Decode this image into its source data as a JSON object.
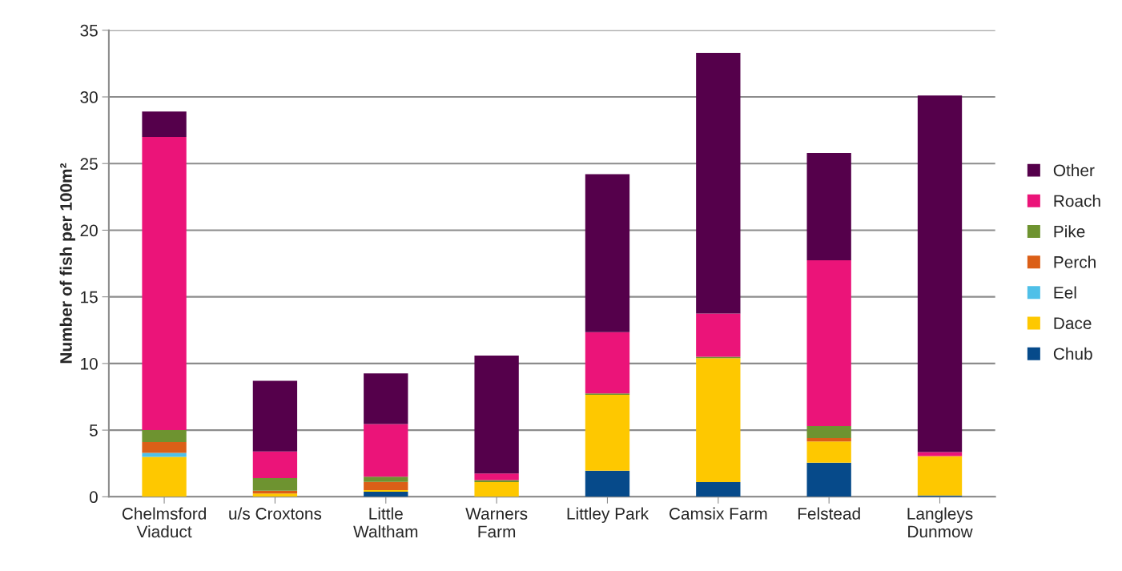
{
  "chart_data": {
    "type": "bar",
    "stacked": true,
    "ylabel": "Number of fish per 100m²",
    "categories": [
      "Chelmsford\nViaduct",
      "u/s Croxtons",
      "Little\nWaltham",
      "Warners\nFarm",
      "Littley Park",
      "Camsix Farm",
      "Felstead",
      "Langleys\nDunmow"
    ],
    "series": [
      {
        "name": "Chub",
        "color": "#064a8a",
        "values": [
          0,
          0,
          0.38,
          0,
          1.95,
          1.1,
          2.55,
          0.1
        ]
      },
      {
        "name": "Dace",
        "color": "#fec800",
        "values": [
          3.0,
          0.25,
          0.12,
          1.1,
          5.7,
          9.3,
          1.6,
          2.95
        ]
      },
      {
        "name": "Eel",
        "color": "#4fc0e8",
        "values": [
          0.3,
          0,
          0,
          0,
          0,
          0,
          0,
          0
        ]
      },
      {
        "name": "Perch",
        "color": "#db5f17",
        "values": [
          0.8,
          0.2,
          0.62,
          0,
          0,
          0,
          0.25,
          0
        ]
      },
      {
        "name": "Pike",
        "color": "#6e9330",
        "values": [
          0.9,
          0.95,
          0.38,
          0.15,
          0.1,
          0.1,
          0.9,
          0
        ]
      },
      {
        "name": "Roach",
        "color": "#eb1479",
        "values": [
          22.0,
          2.0,
          3.95,
          0.5,
          4.6,
          3.25,
          12.45,
          0.3
        ]
      },
      {
        "name": "Other",
        "color": "#55004b",
        "values": [
          1.9,
          5.3,
          3.8,
          8.85,
          11.85,
          19.55,
          8.05,
          26.75
        ]
      }
    ],
    "ylim": [
      0,
      35
    ],
    "yticks": [
      0,
      5,
      10,
      15,
      20,
      25,
      30,
      35
    ],
    "grid": "y",
    "legend": "right"
  }
}
